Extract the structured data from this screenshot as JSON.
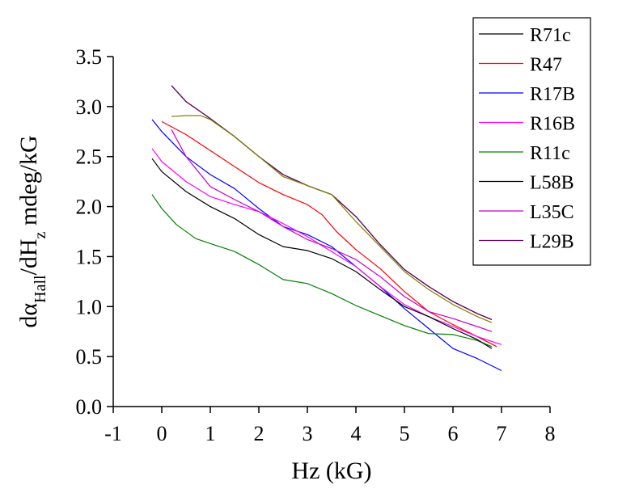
{
  "chart_data": {
    "type": "line",
    "title": "",
    "xlabel": "Hz (kG)",
    "ylabel_parts": {
      "main": "dα",
      "sub1": "Hall",
      "mid": "/dH",
      "sub2": "z",
      "tail": " mdeg/kG"
    },
    "xlim": [
      -1,
      8
    ],
    "ylim": [
      0,
      3.5
    ],
    "xticks": [
      -1,
      0,
      1,
      2,
      3,
      4,
      5,
      6,
      7,
      8
    ],
    "xtick_labels": [
      "-1",
      "0",
      "1",
      "2",
      "3",
      "4",
      "5",
      "6",
      "7",
      "8"
    ],
    "yticks": [
      0,
      0.5,
      1,
      1.5,
      2,
      2.5,
      3,
      3.5
    ],
    "ytick_labels": [
      "0.0",
      "0.5",
      "1.0",
      "1.5",
      "2.0",
      "2.5",
      "3.0",
      "3.5"
    ],
    "grid": false,
    "legend_position": "top-right",
    "series": [
      {
        "name": "R71c",
        "color": "#000000",
        "x": [
          0.2,
          0.5,
          1.0,
          1.5,
          2.0,
          2.5,
          3.0,
          3.5,
          4.0,
          4.5,
          5.0,
          5.5,
          6.0,
          6.5,
          6.8
        ],
        "y": [
          3.21,
          3.05,
          2.88,
          2.7,
          2.5,
          2.32,
          2.21,
          2.12,
          1.9,
          1.62,
          1.37,
          1.2,
          1.05,
          0.93,
          0.87
        ]
      },
      {
        "name": "R47",
        "color": "#ff0000",
        "x": [
          0.0,
          0.5,
          1.0,
          1.5,
          2.0,
          2.5,
          3.0,
          3.3,
          3.6,
          4.0,
          4.5,
          5.0,
          5.5,
          6.0,
          6.5,
          6.9
        ],
        "y": [
          2.85,
          2.72,
          2.56,
          2.4,
          2.24,
          2.12,
          2.02,
          1.92,
          1.75,
          1.57,
          1.38,
          1.15,
          0.95,
          0.82,
          0.7,
          0.6
        ]
      },
      {
        "name": "R17B",
        "color": "#0000ff",
        "x": [
          -0.2,
          0.0,
          0.5,
          1.0,
          1.5,
          2.0,
          2.5,
          3.0,
          3.5,
          4.0,
          4.5,
          5.0,
          5.5,
          6.0,
          6.5,
          7.0
        ],
        "y": [
          2.87,
          2.75,
          2.5,
          2.32,
          2.18,
          1.98,
          1.8,
          1.72,
          1.6,
          1.4,
          1.2,
          0.98,
          0.78,
          0.58,
          0.48,
          0.36
        ]
      },
      {
        "name": "R16B",
        "color": "#ff00ff",
        "x": [
          -0.2,
          0.0,
          0.5,
          1.0,
          1.5,
          2.0,
          2.5,
          3.0,
          3.5,
          4.0,
          4.5,
          5.0,
          5.5,
          6.0,
          6.5,
          7.0
        ],
        "y": [
          2.58,
          2.45,
          2.25,
          2.1,
          2.02,
          1.95,
          1.83,
          1.7,
          1.55,
          1.4,
          1.2,
          1.02,
          0.9,
          0.8,
          0.7,
          0.62
        ]
      },
      {
        "name": "R11c",
        "color": "#008000",
        "x": [
          -0.2,
          0.0,
          0.3,
          0.7,
          1.0,
          1.5,
          2.0,
          2.5,
          3.0,
          3.5,
          4.0,
          4.5,
          5.0,
          5.5,
          6.0,
          6.5,
          6.8
        ],
        "y": [
          2.12,
          1.98,
          1.82,
          1.68,
          1.63,
          1.55,
          1.42,
          1.27,
          1.23,
          1.13,
          1.01,
          0.91,
          0.81,
          0.73,
          0.72,
          0.66,
          0.6
        ]
      },
      {
        "name": "L58B",
        "color": "#000000",
        "x": [
          -0.2,
          0.0,
          0.5,
          1.0,
          1.5,
          2.0,
          2.5,
          3.0,
          3.5,
          4.0,
          4.5,
          5.0,
          5.5,
          6.0,
          6.5,
          6.8
        ],
        "y": [
          2.48,
          2.35,
          2.15,
          2.0,
          1.88,
          1.72,
          1.6,
          1.56,
          1.48,
          1.35,
          1.17,
          1.0,
          0.9,
          0.78,
          0.67,
          0.58
        ]
      },
      {
        "name": "L35C",
        "color": "#cc00cc",
        "x": [
          0.2,
          0.5,
          1.0,
          1.5,
          2.0,
          2.5,
          3.0,
          3.5,
          4.0,
          4.5,
          5.0,
          5.5,
          6.0,
          6.5,
          6.8
        ],
        "y": [
          2.77,
          2.5,
          2.2,
          2.07,
          1.95,
          1.8,
          1.67,
          1.58,
          1.47,
          1.3,
          1.1,
          0.95,
          0.88,
          0.8,
          0.75
        ]
      },
      {
        "name": "L29B",
        "color": "#660066",
        "x": [
          0.2,
          0.5,
          1.0,
          1.5,
          2.0,
          2.5,
          3.0,
          3.5,
          4.0,
          4.5,
          5.0,
          5.5,
          6.0,
          6.5,
          6.8
        ],
        "y": [
          3.21,
          3.05,
          2.88,
          2.7,
          2.5,
          2.32,
          2.21,
          2.12,
          1.9,
          1.62,
          1.37,
          1.2,
          1.05,
          0.93,
          0.87
        ]
      },
      {
        "name": "",
        "color": "#808000",
        "legend": false,
        "x": [
          0.2,
          0.5,
          0.8,
          1.0,
          1.5,
          2.0,
          2.5,
          3.0,
          3.5,
          4.0,
          4.5,
          5.0,
          5.5,
          6.0,
          6.5,
          6.8
        ],
        "y": [
          2.9,
          2.91,
          2.91,
          2.87,
          2.7,
          2.5,
          2.3,
          2.21,
          2.12,
          1.85,
          1.6,
          1.35,
          1.17,
          1.02,
          0.9,
          0.84
        ]
      }
    ]
  }
}
